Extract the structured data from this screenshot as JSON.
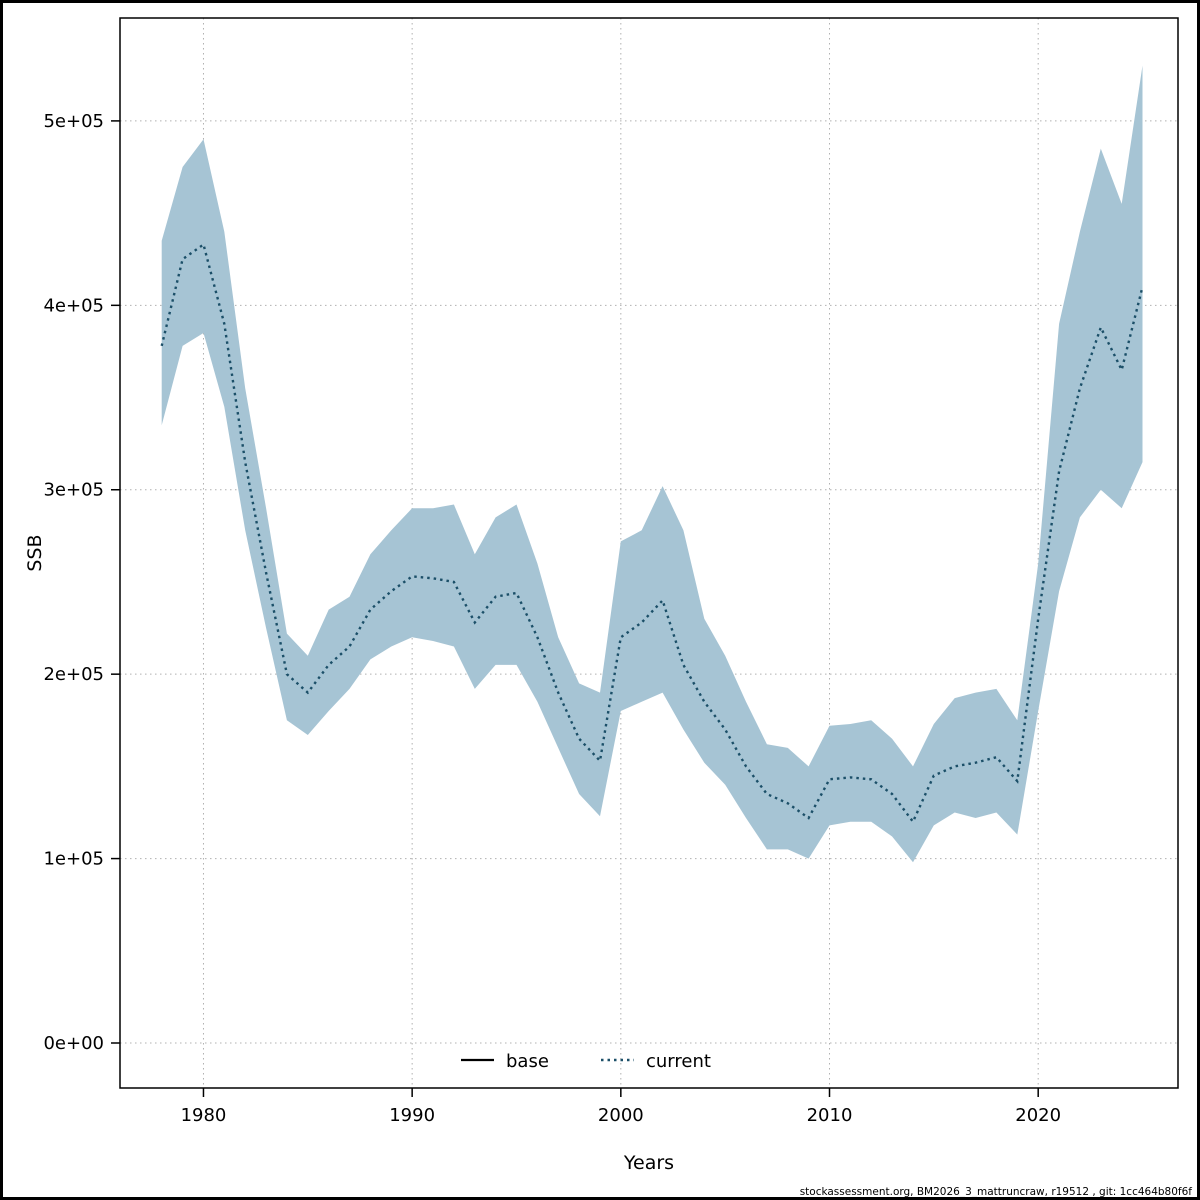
{
  "figure": {
    "xlabel": "Years",
    "ylabel": "SSB",
    "footer": "stockassessment.org, BM2026_3_mattruncraw, r19512 , git: 1cc464b80f6f",
    "legend": {
      "base_label": "base",
      "current_label": "current"
    }
  },
  "chart_data": {
    "type": "area",
    "title": "",
    "xlabel": "Years",
    "ylabel": "SSB",
    "legend_position": "bottom-center",
    "grid": true,
    "x_ticks": [
      1980,
      1990,
      2000,
      2010,
      2020
    ],
    "y_ticks": [
      0,
      100000,
      200000,
      300000,
      400000,
      500000
    ],
    "y_tick_labels": [
      "0e+00",
      "1e+05",
      "2e+05",
      "3e+05",
      "4e+05",
      "5e+05"
    ],
    "xlim": [
      1976.0,
      2026.7
    ],
    "ylim": [
      -24400,
      555800
    ],
    "colors": {
      "band": "#a6c4d4",
      "line": "#1b4f68",
      "base_line": "#000000",
      "grid": "#b0b0b0"
    },
    "x": [
      1978,
      1979,
      1980,
      1981,
      1982,
      1983,
      1984,
      1985,
      1986,
      1987,
      1988,
      1989,
      1990,
      1991,
      1992,
      1993,
      1994,
      1995,
      1996,
      1997,
      1998,
      1999,
      2000,
      2001,
      2002,
      2003,
      2004,
      2005,
      2006,
      2007,
      2008,
      2009,
      2010,
      2011,
      2012,
      2013,
      2014,
      2015,
      2016,
      2017,
      2018,
      2019,
      2020,
      2021,
      2022,
      2023,
      2024,
      2025
    ],
    "series": [
      {
        "name": "current",
        "style": "dotted",
        "values": [
          378000,
          425000,
          433000,
          390000,
          315000,
          255000,
          200000,
          190000,
          205000,
          215000,
          235000,
          245000,
          253000,
          252000,
          250000,
          228000,
          242000,
          244000,
          220000,
          190000,
          165000,
          153000,
          220000,
          228000,
          240000,
          205000,
          185000,
          170000,
          150000,
          135000,
          130000,
          122000,
          143000,
          144000,
          143000,
          135000,
          120000,
          145000,
          150000,
          152000,
          155000,
          142000,
          230000,
          310000,
          355000,
          388000,
          365000,
          410000
        ]
      },
      {
        "name": "current_lower_ci",
        "style": "band-edge",
        "values": [
          335000,
          378000,
          385000,
          345000,
          278000,
          225000,
          175000,
          167000,
          180000,
          192000,
          208000,
          215000,
          220000,
          218000,
          215000,
          192000,
          205000,
          205000,
          185000,
          160000,
          135000,
          123000,
          180000,
          185000,
          190000,
          170000,
          152000,
          140000,
          122000,
          105000,
          105000,
          100000,
          118000,
          120000,
          120000,
          112000,
          98000,
          118000,
          125000,
          122000,
          125000,
          113000,
          180000,
          245000,
          285000,
          300000,
          290000,
          315000
        ]
      },
      {
        "name": "current_upper_ci",
        "style": "band-edge",
        "values": [
          435000,
          475000,
          490000,
          440000,
          355000,
          290000,
          222000,
          210000,
          235000,
          242000,
          265000,
          278000,
          290000,
          290000,
          292000,
          265000,
          285000,
          292000,
          260000,
          220000,
          195000,
          190000,
          272000,
          278000,
          302000,
          278000,
          230000,
          210000,
          185000,
          162000,
          160000,
          150000,
          172000,
          173000,
          175000,
          165000,
          150000,
          173000,
          187000,
          190000,
          192000,
          175000,
          260000,
          390000,
          440000,
          485000,
          455000,
          530000
        ]
      }
    ]
  }
}
